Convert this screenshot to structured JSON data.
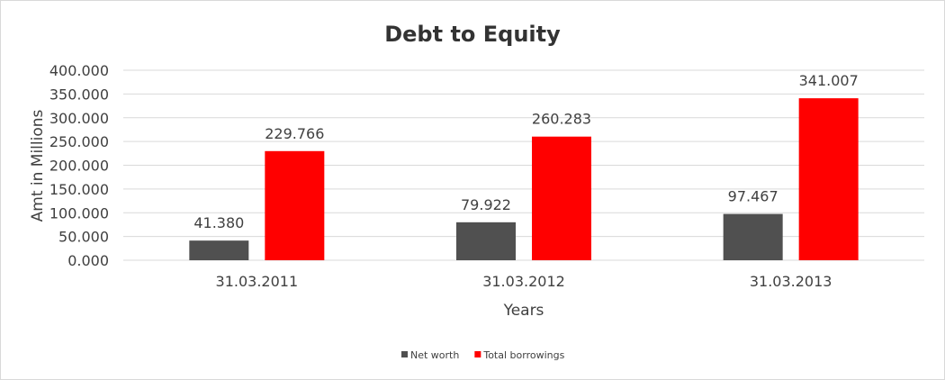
{
  "chart_data": {
    "type": "bar",
    "title": "Debt to Equity",
    "xlabel": "Years",
    "ylabel": "Amt in Millions",
    "categories": [
      "31.03.2011",
      "31.03.2012",
      "31.03.2013"
    ],
    "series": [
      {
        "name": "Net worth",
        "values": [
          41.38,
          79.922,
          97.467
        ],
        "labels": [
          "41.380",
          "79.922",
          "97.467"
        ],
        "color": "#505050"
      },
      {
        "name": "Total borrowings",
        "values": [
          229.766,
          260.283,
          341.007
        ],
        "labels": [
          "229.766",
          "260.283",
          "341.007"
        ],
        "color": "#ff0000"
      }
    ],
    "ylim": [
      0,
      400
    ],
    "yticks": [
      "0.000",
      "50.000",
      "100.000",
      "150.000",
      "200.000",
      "250.000",
      "300.000",
      "350.000",
      "400.000"
    ],
    "ytick_values": [
      0,
      50,
      100,
      150,
      200,
      250,
      300,
      350,
      400
    ],
    "grid": true,
    "legend": "bottom"
  }
}
